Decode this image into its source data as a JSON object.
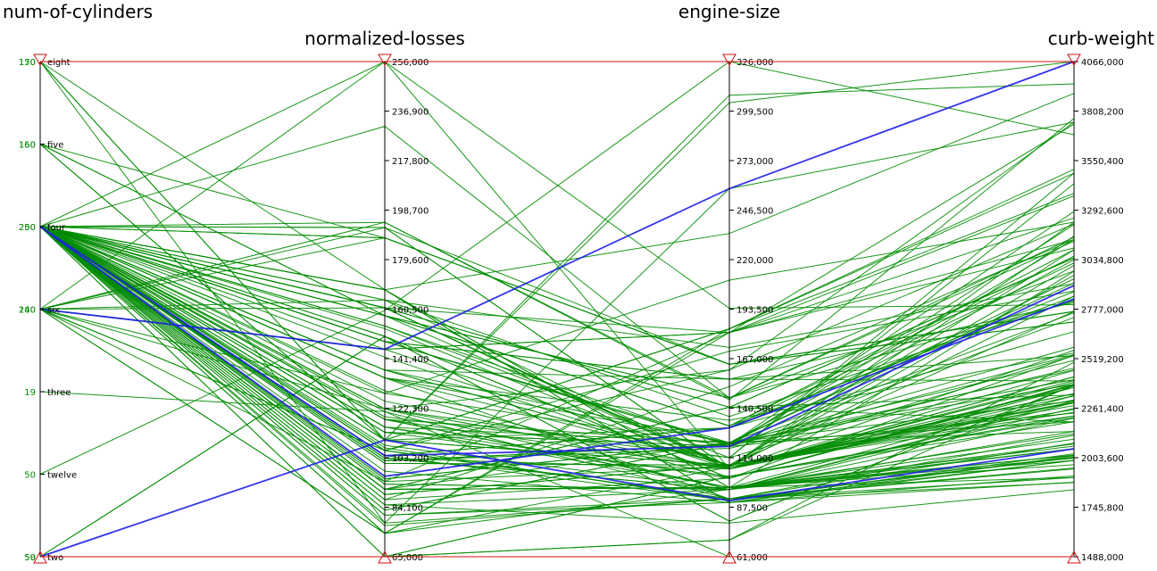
{
  "chart_data": {
    "type": "parallel-coordinates",
    "axes": [
      {
        "name": "num-of-cylinders",
        "kind": "categorical",
        "categories": [
          "eight",
          "five",
          "four",
          "six",
          "three",
          "twelve",
          "two"
        ],
        "tick_labels": [
          "eight",
          "five",
          "four",
          "six",
          "three",
          "twelve",
          "two"
        ],
        "category_counts_top": [
          "170",
          "160",
          "250",
          "240",
          "19",
          "50",
          "50"
        ],
        "category_counts_overlap": [
          "150",
          "150",
          "200",
          "180",
          "",
          "",
          "58"
        ]
      },
      {
        "name": "normalized-losses",
        "kind": "numeric",
        "range": [
          65,
          256
        ],
        "tick_labels": [
          "256,000",
          "236,900",
          "217,800",
          "198,700",
          "179,600",
          "160,500",
          "141,400",
          "122,300",
          "103,200",
          "84,100",
          "65,000"
        ]
      },
      {
        "name": "engine-size",
        "kind": "numeric",
        "range": [
          61,
          326
        ],
        "tick_labels": [
          "326,000",
          "299,500",
          "273,000",
          "246,500",
          "220,000",
          "193,500",
          "167,000",
          "140,500",
          "114,000",
          "87,500",
          "61,000"
        ]
      },
      {
        "name": "curb-weight",
        "kind": "numeric",
        "range": [
          1488,
          4066
        ],
        "tick_labels": [
          "4066,000",
          "3808,200",
          "3550,400",
          "3292,600",
          "3034,800",
          "2777,000",
          "2519,200",
          "2261,400",
          "2003,600",
          "1745,800",
          "1488,000"
        ]
      }
    ],
    "series": [
      {
        "color": "#008c00",
        "rows": [
          [
            "four",
            164,
            109,
            2337
          ],
          [
            "four",
            164,
            136,
            2824
          ],
          [
            "four",
            161,
            109,
            2844
          ],
          [
            "four",
            161,
            109,
            2954
          ],
          [
            "four",
            158,
            109,
            3086
          ],
          [
            "four",
            158,
            131,
            3053
          ],
          [
            "four",
            192,
            108,
            2395
          ],
          [
            "four",
            192,
            108,
            2395
          ],
          [
            "four",
            188,
            164,
            2710
          ],
          [
            "four",
            188,
            164,
            2765
          ],
          [
            "four",
            121,
            92,
            1874
          ],
          [
            "four",
            98,
            90,
            1909
          ],
          [
            "four",
            81,
            90,
            1876
          ],
          [
            "four",
            118,
            98,
            2128
          ],
          [
            "four",
            118,
            98,
            1967
          ],
          [
            "four",
            118,
            98,
            1989
          ],
          [
            "four",
            148,
            122,
            2191
          ],
          [
            "four",
            148,
            156,
            2535
          ],
          [
            "four",
            148,
            156,
            2811
          ],
          [
            "four",
            110,
            110,
            2304
          ],
          [
            "four",
            145,
            110,
            2293
          ],
          [
            "four",
            137,
            110,
            2337
          ],
          [
            "four",
            137,
            110,
            2254
          ],
          [
            "four",
            101,
            110,
            2221
          ],
          [
            "four",
            101,
            110,
            2240
          ],
          [
            "four",
            110,
            110,
            2289
          ],
          [
            "four",
            78,
            92,
            1900
          ],
          [
            "four",
            106,
            92,
            1945
          ],
          [
            "four",
            106,
            92,
            1950
          ],
          [
            "four",
            85,
            79,
            1837
          ],
          [
            "four",
            107,
            91,
            1989
          ],
          [
            "four",
            104,
            91,
            2024
          ],
          [
            "four",
            113,
            120,
            2236
          ],
          [
            "four",
            113,
            120,
            2540
          ],
          [
            "four",
            150,
            103,
            2380
          ],
          [
            "four",
            150,
            103,
            2385
          ],
          [
            "four",
            129,
            103,
            2536
          ],
          [
            "four",
            115,
            103,
            2385
          ],
          [
            "four",
            115,
            98,
            1900
          ],
          [
            "four",
            118,
            122,
            2300
          ],
          [
            "four",
            93,
            97,
            2017
          ],
          [
            "four",
            93,
            97,
            2075
          ],
          [
            "four",
            142,
            108,
            2405
          ],
          [
            "four",
            161,
            108,
            2370
          ],
          [
            "four",
            153,
            108,
            2458
          ],
          [
            "four",
            125,
            108,
            2326
          ],
          [
            "four",
            128,
            120,
            2734
          ],
          [
            "four",
            122,
            97,
            2261
          ],
          [
            "four",
            103,
            97,
            2209
          ],
          [
            "four",
            168,
            98,
            2975
          ],
          [
            "four",
            168,
            98,
            2326
          ],
          [
            "four",
            134,
            92,
            2008
          ],
          [
            "four",
            134,
            122,
            2510
          ],
          [
            "four",
            194,
            146,
            2818
          ],
          [
            "four",
            231,
            146,
            3131
          ],
          [
            "four",
            161,
            141,
            3042
          ],
          [
            "four",
            161,
            141,
            3045
          ],
          [
            "four",
            94,
            109,
            3157
          ],
          [
            "four",
            74,
            109,
            3230
          ],
          [
            "four",
            119,
            114,
            3430
          ],
          [
            "four",
            154,
            114,
            3485
          ],
          [
            "four",
            154,
            120,
            3217
          ],
          [
            "four",
            148,
            121,
            3285
          ],
          [
            "four",
            148,
            121,
            3140
          ],
          [
            "four",
            110,
            130,
            2660
          ],
          [
            "four",
            104,
            130,
            3017
          ],
          [
            "four",
            104,
            130,
            2868
          ],
          [
            "four",
            83,
            122,
            2385
          ],
          [
            "four",
            83,
            122,
            2410
          ],
          [
            "four",
            102,
            121,
            2579
          ],
          [
            "four",
            102,
            121,
            2460
          ],
          [
            "four",
            89,
            110,
            2765
          ],
          [
            "four",
            89,
            110,
            3005
          ],
          [
            "four",
            85,
            97,
            2290
          ],
          [
            "four",
            87,
            152,
            3139
          ],
          [
            "four",
            77,
            92,
            2080
          ],
          [
            "four",
            81,
            92,
            2120
          ],
          [
            "four",
            91,
            98,
            2000
          ],
          [
            "four",
            91,
            98,
            2050
          ],
          [
            "four",
            91,
            98,
            2064
          ],
          [
            "four",
            91,
            98,
            2015
          ],
          [
            "four",
            91,
            98,
            2100
          ],
          [
            "four",
            91,
            122,
            2140
          ],
          [
            "four",
            91,
            141,
            2190
          ],
          [
            "four",
            91,
            141,
            2330
          ],
          [
            "four",
            168,
            90,
            1989
          ],
          [
            "four",
            168,
            90,
            2014
          ],
          [
            "four",
            134,
            110,
            2275
          ],
          [
            "four",
            134,
            134,
            2548
          ],
          [
            "four",
            158,
            146,
            3151
          ],
          [
            "four",
            158,
            146,
            2976
          ],
          [
            "four",
            106,
            92,
            2004
          ],
          [
            "four",
            65,
            104,
            2220
          ],
          [
            "four",
            65,
            104,
            2212
          ],
          [
            "four",
            74,
            97,
            2050
          ],
          [
            "four",
            108,
            97,
            2140
          ],
          [
            "four",
            113,
            104,
            2191
          ],
          [
            "four",
            122,
            114,
            2535
          ],
          [
            "four",
            137,
            122,
            2758
          ],
          [
            "four",
            137,
            156,
            2403
          ],
          [
            "four",
            102,
            119,
            2470
          ],
          [
            "four",
            95,
            122,
            2935
          ],
          [
            "four",
            95,
            122,
            3034
          ],
          [
            "four",
            256,
            108,
            2563
          ],
          [
            "four",
            115,
            122,
            2913
          ],
          [
            "four",
            118,
            108,
            2425
          ],
          [
            "four",
            122,
            108,
            2424
          ],
          [
            "four",
            87,
            103,
            2370
          ],
          [
            "four",
            103,
            97,
            2300
          ],
          [
            "four",
            103,
            108,
            2290
          ],
          [
            "five",
            158,
            131,
            2844
          ],
          [
            "five",
            158,
            131,
            3086
          ],
          [
            "five",
            110,
            183,
            3380
          ],
          [
            "five",
            110,
            183,
            3505
          ],
          [
            "five",
            188,
            164,
            2710
          ],
          [
            "six",
            192,
            164,
            2765
          ],
          [
            "six",
            128,
            209,
            3230
          ],
          [
            "six",
            188,
            164,
            2765
          ],
          [
            "six",
            145,
            181,
            3740
          ],
          [
            "six",
            145,
            181,
            3367
          ],
          [
            "six",
            256,
            194,
            2800
          ],
          [
            "six",
            94,
            181,
            3139
          ],
          [
            "six",
            74,
            181,
            3252
          ],
          [
            "six",
            161,
            181,
            3095
          ],
          [
            "six",
            164,
            173,
            2910
          ],
          [
            "six",
            106,
            171,
            2871
          ],
          [
            "six",
            106,
            161,
            3750
          ],
          [
            "six",
            194,
            145,
            3770
          ],
          [
            "six",
            122,
            161,
            3220
          ],
          [
            "six",
            74,
            183,
            3485
          ],
          [
            "eight",
            78,
            258,
            3750
          ],
          [
            "eight",
            110,
            304,
            4066
          ],
          [
            "eight",
            110,
            308,
            3950
          ],
          [
            "eight",
            256,
            326,
            3685
          ],
          [
            "eight",
            168,
            234,
            3900
          ],
          [
            "twelve",
            160,
            326,
            4066
          ],
          [
            "three",
            121,
            61,
            1488
          ],
          [
            "two",
            150,
            80,
            2380
          ],
          [
            "two",
            150,
            80,
            2380
          ],
          [
            "two",
            65,
            70,
            2385
          ],
          [
            "two",
            65,
            70,
            2500
          ]
        ]
      },
      {
        "color": "#1f1fe6",
        "rows": [
          [
            "six",
            145,
            258,
            4066
          ],
          [
            "four",
            104,
            120,
            2900
          ],
          [
            "four",
            96,
            130,
            2830
          ],
          [
            "two",
            110,
            91,
            2050
          ]
        ]
      }
    ]
  }
}
